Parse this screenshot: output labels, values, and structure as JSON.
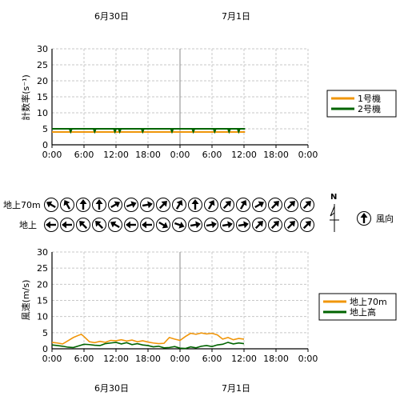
{
  "date_labels": {
    "day1": "6月30日",
    "day2": "7月1日"
  },
  "chart_data": [
    {
      "type": "line",
      "ylabel": "計数率(s⁻¹)",
      "ylim": [
        0,
        30
      ],
      "yticks": [
        0,
        5,
        10,
        15,
        20,
        25,
        30
      ],
      "xticks": [
        "0:00",
        "6:00",
        "12:00",
        "18:00",
        "0:00",
        "6:00",
        "12:00",
        "18:00",
        "0:00"
      ],
      "xlim_hours": [
        0,
        48
      ],
      "legend": {
        "position": "right",
        "entries": [
          "1号機",
          "2号機"
        ]
      },
      "series": [
        {
          "name": "1号機",
          "color": "#f0960a",
          "x_hours": [
            0,
            36.2
          ],
          "values": [
            4.0,
            4.0
          ]
        },
        {
          "name": "2号機",
          "color": "#006400",
          "x_hours": [
            0,
            36.2
          ],
          "values": [
            5.0,
            5.0
          ],
          "dip_hours": [
            3.5,
            8,
            11.8,
            12.7,
            17,
            22.5,
            26.5,
            30.5,
            33.2,
            35
          ]
        }
      ]
    },
    {
      "type": "line",
      "ylabel": "風速(m/s)",
      "ylim": [
        0,
        30
      ],
      "yticks": [
        0,
        5,
        10,
        15,
        20,
        25,
        30
      ],
      "xticks": [
        "0:00",
        "6:00",
        "12:00",
        "18:00",
        "0:00",
        "6:00",
        "12:00",
        "18:00",
        "0:00"
      ],
      "xlim_hours": [
        0,
        48
      ],
      "legend": {
        "position": "right",
        "entries": [
          "地上70m",
          "地上高"
        ]
      },
      "series": [
        {
          "name": "地上70m",
          "color": "#f0960a",
          "x_hours": [
            0,
            1,
            2,
            3,
            4,
            5,
            5.5,
            6,
            7,
            8,
            9,
            10,
            11,
            12,
            13,
            14,
            15,
            16,
            17,
            18,
            19,
            20,
            21,
            22,
            23,
            24,
            25,
            26,
            27,
            28,
            29,
            30,
            31,
            32,
            33,
            34,
            35,
            36
          ],
          "values": [
            2.0,
            1.8,
            1.5,
            2.5,
            3.5,
            4.2,
            4.5,
            3.8,
            2.2,
            1.9,
            2.3,
            2.0,
            2.6,
            2.5,
            2.8,
            2.4,
            2.7,
            2.2,
            2.5,
            2.1,
            1.8,
            1.6,
            1.7,
            3.5,
            3.0,
            2.6,
            3.8,
            4.8,
            4.5,
            4.9,
            4.6,
            4.8,
            4.3,
            3.0,
            3.5,
            2.8,
            3.2,
            3.0
          ]
        },
        {
          "name": "地上高",
          "color": "#006400",
          "x_hours": [
            0,
            1,
            2,
            3,
            4,
            5,
            6,
            7,
            8,
            9,
            10,
            11,
            12,
            13,
            14,
            15,
            16,
            17,
            18,
            19,
            20,
            21,
            22,
            23,
            24,
            25,
            26,
            27,
            28,
            29,
            30,
            31,
            32,
            33,
            34,
            35,
            36
          ],
          "values": [
            1.2,
            1.0,
            0.8,
            0.5,
            0.4,
            0.9,
            1.4,
            1.3,
            1.1,
            1.0,
            1.6,
            1.8,
            2.0,
            1.5,
            1.9,
            1.3,
            1.6,
            1.2,
            1.0,
            0.6,
            0.8,
            0.3,
            0.4,
            0.7,
            0.2,
            0.1,
            0.6,
            0.3,
            0.8,
            1.0,
            0.7,
            1.2,
            1.4,
            2.0,
            1.5,
            1.8,
            1.6
          ]
        }
      ]
    }
  ],
  "wind": {
    "row_labels": {
      "upper": "地上70m",
      "lower": "地上"
    },
    "upper_directions_deg": [
      300,
      330,
      0,
      0,
      60,
      70,
      80,
      45,
      30,
      0,
      30,
      45,
      30,
      60,
      45,
      45,
      45
    ],
    "lower_directions_deg": [
      270,
      270,
      315,
      315,
      300,
      270,
      270,
      120,
      110,
      80,
      80,
      80,
      80,
      45,
      45,
      45,
      45
    ],
    "north_label": "N",
    "legend_label": "風向",
    "legend_direction_deg": 0
  }
}
